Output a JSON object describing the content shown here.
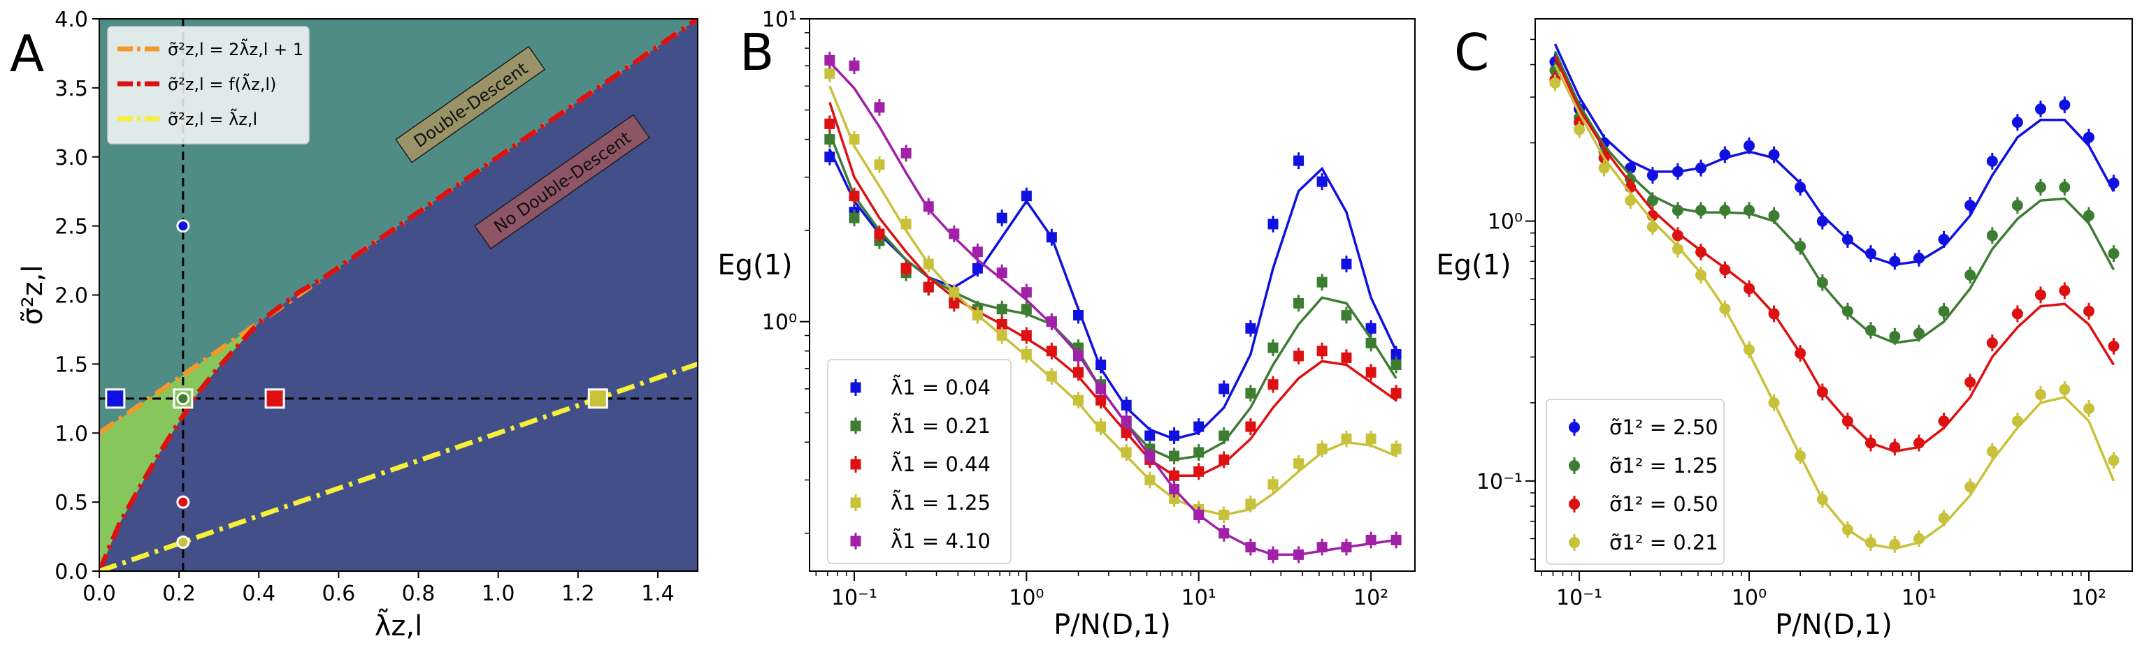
{
  "chart_data": [
    {
      "panel": "A",
      "type": "area",
      "xlabel": "λ̃z,l",
      "ylabel": "σ̃²z,l",
      "xlim": [
        0,
        1.5
      ],
      "ylim": [
        0,
        4.0
      ],
      "x_ticks": [
        "0.0",
        "0.2",
        "0.4",
        "0.6",
        "0.8",
        "1.0",
        "1.2",
        "1.4"
      ],
      "y_ticks": [
        "0.0",
        "0.5",
        "1.0",
        "1.5",
        "2.0",
        "2.5",
        "3.0",
        "3.5",
        "4.0"
      ],
      "legend_position": "top-left",
      "colors": {
        "upper": "#4f8c86",
        "lower": "#434f88",
        "middle": "#86c65a",
        "orange": "#f09a2a",
        "red": "#dd1111",
        "yellow": "#f6f039"
      },
      "regions": [
        {
          "label": "Double-Descent",
          "color": "#9a9368"
        },
        {
          "label": "No Double-Descent",
          "color": "#8e5567"
        }
      ],
      "series": [
        {
          "name": "σ̃²z,l = 2λ̃z,l + 1",
          "style": "dash-dot",
          "color": "#f09a2a",
          "x": [
            0,
            1.5
          ],
          "y": [
            1.0,
            4.0
          ]
        },
        {
          "name": "σ̃²z,l = f(λ̃z,l)",
          "style": "dash-dot",
          "color": "#dd1111",
          "x": [
            0,
            0.05,
            0.1,
            0.15,
            0.2,
            0.25,
            0.3,
            0.4,
            0.5,
            0.56,
            0.7,
            0.9,
            1.1,
            1.3,
            1.5
          ],
          "y": [
            0,
            0.34,
            0.6,
            0.85,
            1.08,
            1.3,
            1.48,
            1.8,
            2.02,
            2.12,
            2.4,
            2.8,
            3.2,
            3.6,
            4.0
          ]
        },
        {
          "name": "σ̃²z,l = λ̃z,l",
          "style": "dash-dot",
          "color": "#f6f039",
          "x": [
            0,
            1.5
          ],
          "y": [
            0,
            1.5
          ]
        }
      ],
      "guides": {
        "vertical_x": 0.21,
        "horizontal_y": 1.25
      },
      "square_markers": [
        {
          "x": 0.04,
          "y": 1.25,
          "color": "#1010e0"
        },
        {
          "x": 0.21,
          "y": 1.25,
          "color": "#86c65a"
        },
        {
          "x": 0.44,
          "y": 1.25,
          "color": "#dd1111"
        },
        {
          "x": 1.25,
          "y": 1.25,
          "color": "#c8c13a"
        }
      ],
      "circle_markers": [
        {
          "x": 0.21,
          "y": 2.5,
          "color": "#1010e0"
        },
        {
          "x": 0.21,
          "y": 1.25,
          "color": "#3c7d32"
        },
        {
          "x": 0.21,
          "y": 0.5,
          "color": "#dd1111"
        },
        {
          "x": 0.21,
          "y": 0.21,
          "color": "#c8c13a"
        }
      ]
    },
    {
      "panel": "B",
      "type": "scatter",
      "xscale": "log",
      "yscale": "log",
      "xlabel": "P/N(D,1)",
      "ylabel": "Eg(1)",
      "xlim": [
        0.055,
        180
      ],
      "ylim": [
        0.15,
        10
      ],
      "legend_position": "bottom-left",
      "x": [
        0.072,
        0.1,
        0.14,
        0.2,
        0.27,
        0.38,
        0.52,
        0.72,
        1.0,
        1.4,
        2.0,
        2.7,
        3.8,
        5.2,
        7.2,
        10,
        14,
        20,
        27,
        38,
        52,
        72,
        100,
        140
      ],
      "series": [
        {
          "name": "λ̃1 = 0.04",
          "color": "#1010e0",
          "values": [
            3.5,
            2.3,
            1.9,
            1.5,
            1.3,
            1.2,
            1.5,
            2.2,
            2.6,
            1.9,
            1.05,
            0.72,
            0.53,
            0.42,
            0.42,
            0.45,
            0.6,
            0.95,
            2.1,
            3.4,
            2.9,
            1.55,
            0.95,
            0.78
          ],
          "fit": [
            3.7,
            2.5,
            1.95,
            1.6,
            1.4,
            1.3,
            1.45,
            1.9,
            2.5,
            1.9,
            1.1,
            0.7,
            0.52,
            0.44,
            0.41,
            0.43,
            0.52,
            0.78,
            1.5,
            2.7,
            3.2,
            2.3,
            1.2,
            0.8
          ]
        },
        {
          "name": "λ̃1 = 0.21",
          "color": "#3c7d32",
          "values": [
            4.0,
            2.2,
            1.85,
            1.45,
            1.3,
            1.2,
            1.1,
            1.1,
            1.1,
            1.0,
            0.82,
            0.62,
            0.46,
            0.38,
            0.36,
            0.37,
            0.42,
            0.58,
            0.82,
            1.15,
            1.35,
            1.05,
            0.85,
            0.72
          ],
          "fit": [
            4.2,
            2.6,
            2.0,
            1.6,
            1.4,
            1.25,
            1.15,
            1.1,
            1.06,
            0.98,
            0.8,
            0.6,
            0.46,
            0.38,
            0.35,
            0.36,
            0.4,
            0.52,
            0.72,
            0.98,
            1.2,
            1.15,
            0.88,
            0.65
          ]
        },
        {
          "name": "λ̃1 = 0.44",
          "color": "#dd1111",
          "values": [
            4.5,
            2.6,
            1.95,
            1.5,
            1.3,
            1.15,
            1.05,
            0.98,
            0.9,
            0.8,
            0.68,
            0.55,
            0.43,
            0.35,
            0.31,
            0.32,
            0.35,
            0.45,
            0.62,
            0.77,
            0.8,
            0.76,
            0.68,
            0.58
          ],
          "fit": [
            5.3,
            3.0,
            2.2,
            1.7,
            1.4,
            1.2,
            1.08,
            0.98,
            0.88,
            0.78,
            0.66,
            0.54,
            0.43,
            0.35,
            0.31,
            0.31,
            0.34,
            0.41,
            0.52,
            0.65,
            0.74,
            0.72,
            0.63,
            0.55
          ]
        },
        {
          "name": "λ̃1 = 1.25",
          "color": "#c8c13a",
          "values": [
            6.6,
            4.0,
            3.3,
            2.1,
            1.55,
            1.25,
            1.05,
            0.9,
            0.78,
            0.66,
            0.55,
            0.45,
            0.37,
            0.3,
            0.26,
            0.24,
            0.23,
            0.25,
            0.29,
            0.34,
            0.38,
            0.41,
            0.41,
            0.38
          ],
          "fit": [
            6.0,
            3.8,
            2.8,
            2.0,
            1.55,
            1.25,
            1.05,
            0.9,
            0.77,
            0.65,
            0.54,
            0.44,
            0.36,
            0.3,
            0.26,
            0.24,
            0.23,
            0.24,
            0.27,
            0.32,
            0.37,
            0.4,
            0.39,
            0.36
          ]
        },
        {
          "name": "λ̃1 = 4.10",
          "color": "#a020a8",
          "values": [
            7.3,
            7.0,
            5.1,
            3.6,
            2.4,
            1.95,
            1.7,
            1.45,
            1.25,
            1.0,
            0.77,
            0.6,
            0.47,
            0.36,
            0.28,
            0.23,
            0.2,
            0.18,
            0.17,
            0.17,
            0.18,
            0.18,
            0.19,
            0.19
          ],
          "fit": [
            7.2,
            5.9,
            4.4,
            3.1,
            2.35,
            1.9,
            1.6,
            1.38,
            1.18,
            0.98,
            0.78,
            0.6,
            0.46,
            0.36,
            0.28,
            0.23,
            0.2,
            0.18,
            0.17,
            0.17,
            0.175,
            0.18,
            0.185,
            0.19
          ]
        }
      ]
    },
    {
      "panel": "C",
      "type": "scatter",
      "xscale": "log",
      "yscale": "log",
      "xlabel": "P/N(D,1)",
      "ylabel": "Eg(1)",
      "xlim": [
        0.055,
        180
      ],
      "ylim": [
        0.045,
        6.0
      ],
      "legend_position": "bottom-left",
      "x": [
        0.072,
        0.1,
        0.14,
        0.2,
        0.27,
        0.38,
        0.52,
        0.72,
        1.0,
        1.4,
        2.0,
        2.7,
        3.8,
        5.2,
        7.2,
        10,
        14,
        20,
        27,
        38,
        52,
        72,
        100,
        140
      ],
      "series": [
        {
          "name": "σ̃1² = 2.50",
          "color": "#1010e0",
          "values": [
            4.1,
            2.7,
            2.0,
            1.6,
            1.5,
            1.55,
            1.6,
            1.8,
            1.95,
            1.8,
            1.35,
            1.0,
            0.85,
            0.75,
            0.7,
            0.72,
            0.85,
            1.15,
            1.7,
            2.4,
            2.7,
            2.8,
            2.1,
            1.4
          ],
          "fit": [
            4.8,
            3.0,
            2.1,
            1.7,
            1.55,
            1.55,
            1.6,
            1.75,
            1.85,
            1.75,
            1.4,
            1.05,
            0.85,
            0.73,
            0.68,
            0.7,
            0.8,
            1.05,
            1.5,
            2.1,
            2.45,
            2.45,
            1.95,
            1.3
          ]
        },
        {
          "name": "σ̃1² = 1.25",
          "color": "#3c7d32",
          "values": [
            3.8,
            2.5,
            1.85,
            1.45,
            1.2,
            1.1,
            1.1,
            1.1,
            1.1,
            1.05,
            0.8,
            0.58,
            0.45,
            0.38,
            0.36,
            0.37,
            0.45,
            0.62,
            0.88,
            1.15,
            1.35,
            1.35,
            1.05,
            0.75
          ],
          "fit": [
            4.5,
            2.8,
            1.95,
            1.5,
            1.25,
            1.12,
            1.08,
            1.08,
            1.07,
            1.0,
            0.78,
            0.57,
            0.44,
            0.37,
            0.34,
            0.35,
            0.41,
            0.55,
            0.78,
            1.02,
            1.2,
            1.22,
            0.98,
            0.65
          ]
        },
        {
          "name": "σ̃1² = 0.50",
          "color": "#dd1111",
          "values": [
            3.5,
            2.4,
            1.75,
            1.35,
            1.05,
            0.88,
            0.76,
            0.65,
            0.55,
            0.44,
            0.31,
            0.22,
            0.17,
            0.14,
            0.135,
            0.14,
            0.17,
            0.24,
            0.34,
            0.44,
            0.52,
            0.54,
            0.45,
            0.33
          ],
          "fit": [
            4.3,
            2.7,
            1.9,
            1.4,
            1.1,
            0.9,
            0.77,
            0.66,
            0.56,
            0.44,
            0.31,
            0.22,
            0.17,
            0.14,
            0.13,
            0.135,
            0.16,
            0.21,
            0.3,
            0.39,
            0.47,
            0.48,
            0.4,
            0.28
          ]
        },
        {
          "name": "σ̃1² = 0.21",
          "color": "#c8c13a",
          "values": [
            3.4,
            2.25,
            1.6,
            1.2,
            0.95,
            0.78,
            0.62,
            0.46,
            0.32,
            0.2,
            0.125,
            0.085,
            0.065,
            0.058,
            0.057,
            0.06,
            0.072,
            0.095,
            0.13,
            0.17,
            0.215,
            0.225,
            0.19,
            0.12
          ],
          "fit": [
            4.0,
            2.6,
            1.75,
            1.28,
            1.0,
            0.8,
            0.63,
            0.46,
            0.31,
            0.2,
            0.125,
            0.085,
            0.065,
            0.057,
            0.055,
            0.058,
            0.068,
            0.088,
            0.12,
            0.16,
            0.2,
            0.21,
            0.17,
            0.1
          ]
        }
      ]
    }
  ],
  "panel_letters": [
    "A",
    "B",
    "C"
  ],
  "tick_labels": {
    "log_x": [
      "10⁻¹",
      "10⁰",
      "10¹",
      "10²"
    ],
    "log_y_B": [
      "10¹",
      "10⁰"
    ],
    "log_y_C": [
      "10⁰",
      "10⁻¹"
    ]
  }
}
